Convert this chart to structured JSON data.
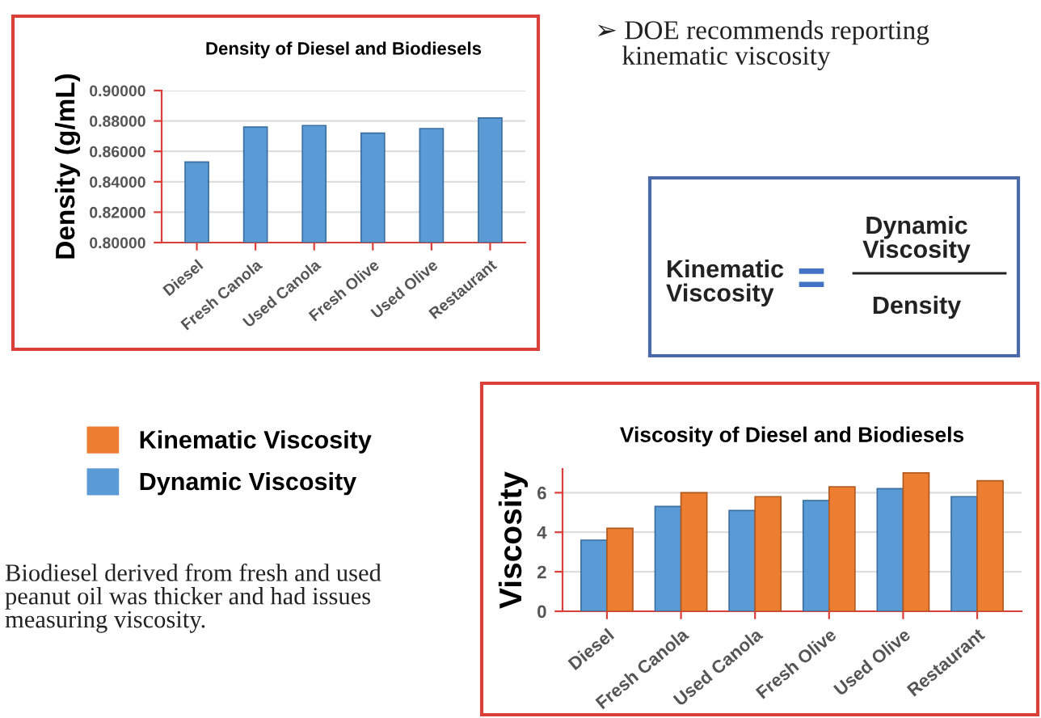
{
  "chart_data": [
    {
      "type": "bar",
      "title": "Density of Diesel and Biodiesels",
      "ylabel": "Density (g/mL)",
      "categories": [
        "Diesel",
        "Fresh Canola",
        "Used Canola",
        "Fresh Olive",
        "Used Olive",
        "Restaurant"
      ],
      "values": [
        0.853,
        0.876,
        0.877,
        0.872,
        0.875,
        0.882
      ],
      "color": "#5b9bd5",
      "ylim": [
        0.8,
        0.9
      ],
      "yticks": [
        {
          "value": 0.8,
          "label": "0.80000"
        },
        {
          "value": 0.82,
          "label": "0.82000"
        },
        {
          "value": 0.84,
          "label": "0.84000"
        },
        {
          "value": 0.86,
          "label": "0.86000"
        },
        {
          "value": 0.88,
          "label": "0.88000"
        },
        {
          "value": 0.9,
          "label": "0.90000"
        }
      ],
      "grid": "y"
    },
    {
      "type": "other",
      "annotations": [
        "➢ DOE recommends reporting\n    kinematic viscosity",
        "Kinematic\nViscosity",
        "=",
        "Dynamic\nViscosity",
        "Density",
        "Biodiesel derived from fresh and used\npeanut oil was thicker and had issues\nmeasuring viscosity."
      ]
    },
    {
      "type": "bar",
      "title": "Viscosity of Diesel and Biodiesels",
      "ylabel": "Viscosity",
      "categories": [
        "Diesel",
        "Fresh Canola",
        "Used Canola",
        "Fresh Olive",
        "Used Olive",
        "Restaurant"
      ],
      "series": [
        {
          "name": "Dynamic Viscosity",
          "color": "#5b9bd5",
          "values": [
            3.6,
            5.3,
            5.1,
            5.6,
            6.2,
            5.8
          ]
        },
        {
          "name": "Kinematic Viscosity",
          "color": "#ed7d31",
          "values": [
            4.2,
            6.0,
            5.8,
            6.3,
            7.0,
            6.6
          ]
        }
      ],
      "ylim": [
        0,
        7.2
      ],
      "yticks": [
        0,
        2,
        4,
        6
      ],
      "grid": "y",
      "legend": "left"
    }
  ]
}
